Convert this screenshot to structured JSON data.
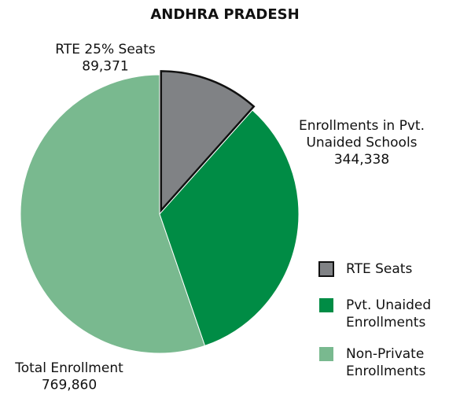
{
  "chart_data": {
    "type": "pie",
    "title": "ANDHRA PRADESH",
    "slices": [
      {
        "label": [
          "RTE 25% Seats"
        ],
        "value": 89371,
        "value_label": "89,371",
        "legend": [
          "RTE Seats"
        ],
        "color": "#808285"
      },
      {
        "label": [
          "Enrollments in Pvt.",
          "Unaided Schools"
        ],
        "value": 344338,
        "value_label": "344,338",
        "legend": [
          "Pvt. Unaided",
          "Enrollments"
        ],
        "color": "#008c45"
      },
      {
        "label": [
          "Total Enrollment"
        ],
        "value": 769860,
        "value_label": "769,860",
        "legend": [
          "Non-Private",
          "Enrollments"
        ],
        "color": "#79b98f"
      }
    ]
  }
}
